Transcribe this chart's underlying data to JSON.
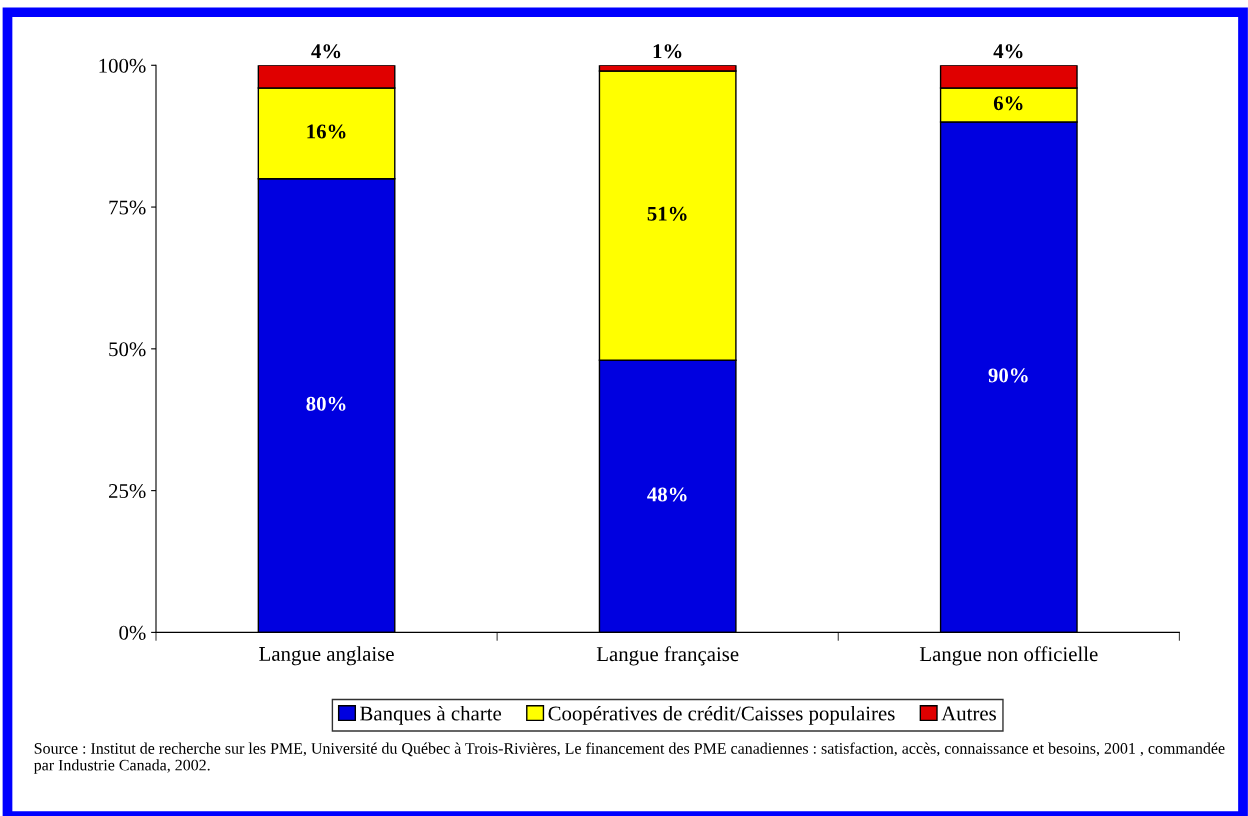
{
  "chart_data": {
    "type": "bar",
    "stacked": true,
    "categories": [
      "Langue anglaise",
      "Langue française",
      "Langue non officielle"
    ],
    "series": [
      {
        "name": "Banques à charte",
        "color": "#0000e0",
        "values": [
          80,
          48,
          90
        ],
        "value_labels": [
          "80%",
          "48%",
          "90%"
        ]
      },
      {
        "name": "Coopératives de crédit/Caisses populaires",
        "color": "#ffff00",
        "values": [
          16,
          51,
          6
        ],
        "value_labels": [
          "16%",
          "51%",
          "6%"
        ]
      },
      {
        "name": "Autres",
        "color": "#e00000",
        "values": [
          4,
          1,
          4
        ],
        "value_labels": [
          "4%",
          "1%",
          "4%"
        ]
      }
    ],
    "ylim": [
      0,
      100
    ],
    "yticks": [
      {
        "value": 0,
        "label": "0%"
      },
      {
        "value": 25,
        "label": "25%"
      },
      {
        "value": 50,
        "label": "50%"
      },
      {
        "value": 75,
        "label": "75%"
      },
      {
        "value": 100,
        "label": "100%"
      }
    ],
    "grid": false,
    "legend": "bottom",
    "annotations": [
      "Source : Institut de recherche sur les PME, Université du Québec à Trois-Rivières, Le financement des PME canadiennes : satisfaction, accès, connaissance et besoins, 2001 , commandée par Industrie Canada, 2002."
    ]
  }
}
